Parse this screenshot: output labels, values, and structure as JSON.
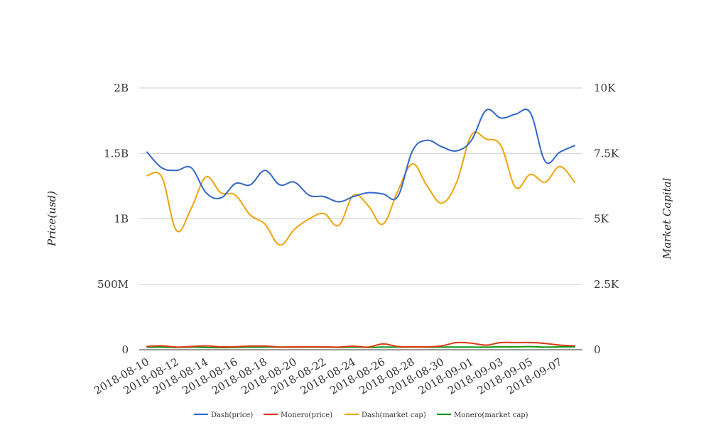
{
  "chart_data": {
    "type": "line",
    "title": "",
    "xlabel": "",
    "ylabel_left": "Price(usd)",
    "ylabel_right": "Market Capital",
    "x": [
      "2018-08-10",
      "2018-08-11",
      "2018-08-12",
      "2018-08-13",
      "2018-08-14",
      "2018-08-15",
      "2018-08-16",
      "2018-08-17",
      "2018-08-18",
      "2018-08-19",
      "2018-08-20",
      "2018-08-21",
      "2018-08-22",
      "2018-08-23",
      "2018-08-24",
      "2018-08-25",
      "2018-08-26",
      "2018-08-27",
      "2018-08-28",
      "2018-08-29",
      "2018-08-30",
      "2018-08-31",
      "2018-09-01",
      "2018-09-02",
      "2018-09-03",
      "2018-09-04",
      "2018-09-05",
      "2018-09-06",
      "2018-09-07",
      "2018-09-08"
    ],
    "x_tick_labels": [
      "2018-08-10",
      "2018-08-12",
      "2018-08-14",
      "2018-08-16",
      "2018-08-18",
      "2018-08-20",
      "2018-08-22",
      "2018-08-24",
      "2018-08-26",
      "2018-08-28",
      "2018-08-30",
      "2018-09-01",
      "2018-09-03",
      "2018-09-05",
      "2018-09-07"
    ],
    "left_axis": {
      "ylim": [
        0,
        2000000000
      ],
      "ticks": [
        0,
        500000000,
        1000000000,
        1500000000,
        2000000000
      ],
      "tick_labels": [
        "0",
        "500M",
        "1B",
        "1.5B",
        "2B"
      ]
    },
    "right_axis": {
      "ylim": [
        0,
        10000
      ],
      "ticks": [
        0,
        2500,
        5000,
        7500,
        10000
      ],
      "tick_labels": [
        "0",
        "2.5K",
        "5K",
        "7.5K",
        "10K"
      ]
    },
    "grid": true,
    "legend_position": "bottom",
    "series": [
      {
        "name": "Dash(price)",
        "axis": "left",
        "color": "#3366cc",
        "values": [
          1510000000,
          1390000000,
          1370000000,
          1390000000,
          1200000000,
          1160000000,
          1270000000,
          1260000000,
          1370000000,
          1260000000,
          1280000000,
          1180000000,
          1170000000,
          1130000000,
          1170000000,
          1200000000,
          1190000000,
          1170000000,
          1520000000,
          1600000000,
          1550000000,
          1520000000,
          1600000000,
          1830000000,
          1770000000,
          1800000000,
          1810000000,
          1440000000,
          1510000000,
          1560000000
        ]
      },
      {
        "name": "Monero(price)",
        "axis": "left",
        "color": "#dc3912",
        "values": [
          25000000,
          30000000,
          20000000,
          25000000,
          30000000,
          22000000,
          23000000,
          28000000,
          28000000,
          20000000,
          22000000,
          22000000,
          22000000,
          20000000,
          27000000,
          20000000,
          45000000,
          25000000,
          22000000,
          22000000,
          30000000,
          55000000,
          50000000,
          35000000,
          55000000,
          55000000,
          55000000,
          48000000,
          35000000,
          30000000
        ]
      },
      {
        "name": "Dash(market cap)",
        "axis": "right",
        "color": "#f0a30a",
        "values": [
          6650,
          6600,
          4550,
          5400,
          6600,
          6000,
          5900,
          5150,
          4800,
          4000,
          4600,
          5000,
          5200,
          4750,
          5900,
          5500,
          4800,
          6050,
          7100,
          6250,
          5600,
          6400,
          8200,
          8050,
          7800,
          6200,
          6700,
          6400,
          7000,
          6400
        ]
      },
      {
        "name": "Monero(market cap)",
        "axis": "right",
        "color": "#109618",
        "values": [
          100,
          100,
          90,
          100,
          90,
          80,
          90,
          100,
          100,
          100,
          100,
          100,
          100,
          90,
          100,
          90,
          100,
          100,
          100,
          100,
          100,
          100,
          100,
          100,
          110,
          110,
          120,
          100,
          110,
          110
        ]
      }
    ]
  }
}
